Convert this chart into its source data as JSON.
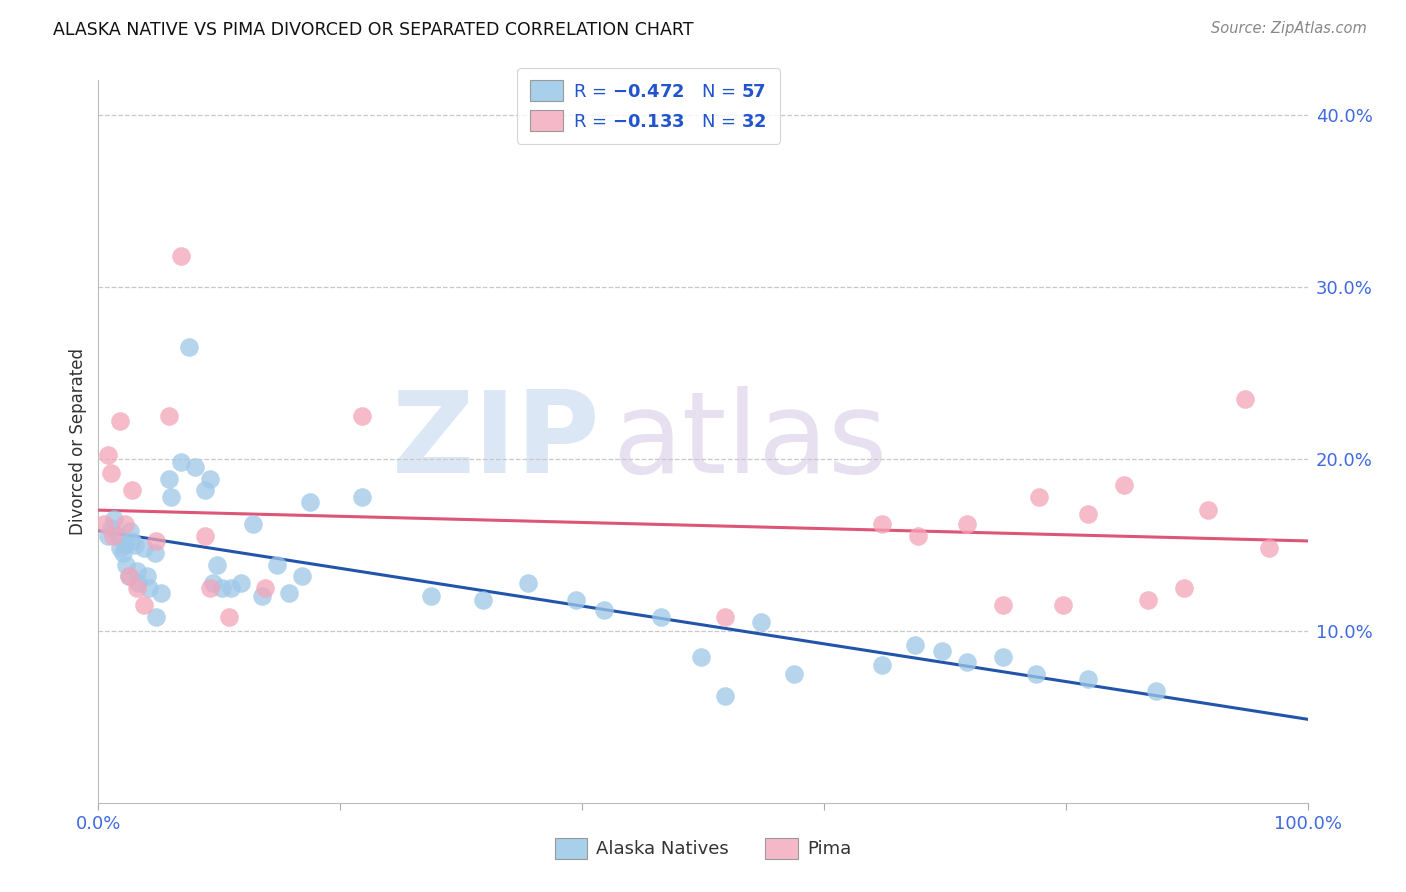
{
  "title": "ALASKA NATIVE VS PIMA DIVORCED OR SEPARATED CORRELATION CHART",
  "source": "Source: ZipAtlas.com",
  "ylabel": "Divorced or Separated",
  "xlim": [
    0.0,
    1.0
  ],
  "ylim": [
    0.0,
    0.42
  ],
  "legend_color1": "#a8d0eb",
  "legend_color2": "#f5b8c8",
  "line_color1": "#2255aa",
  "line_color2": "#dd5577",
  "dot_color1": "#9ec8e8",
  "dot_color2": "#f4a4b8",
  "background_color": "#ffffff",
  "grid_color": "#c8c8c8",
  "tick_color": "#4169E1",
  "alaska_x": [
    0.008,
    0.01,
    0.013,
    0.016,
    0.018,
    0.02,
    0.022,
    0.023,
    0.025,
    0.026,
    0.028,
    0.03,
    0.032,
    0.033,
    0.038,
    0.04,
    0.042,
    0.047,
    0.048,
    0.052,
    0.058,
    0.06,
    0.068,
    0.075,
    0.08,
    0.088,
    0.092,
    0.095,
    0.098,
    0.102,
    0.11,
    0.118,
    0.128,
    0.135,
    0.148,
    0.158,
    0.168,
    0.175,
    0.218,
    0.275,
    0.318,
    0.355,
    0.395,
    0.418,
    0.465,
    0.498,
    0.518,
    0.548,
    0.575,
    0.648,
    0.675,
    0.698,
    0.718,
    0.748,
    0.775,
    0.818,
    0.875
  ],
  "alaska_y": [
    0.155,
    0.16,
    0.165,
    0.155,
    0.148,
    0.145,
    0.15,
    0.138,
    0.132,
    0.158,
    0.152,
    0.15,
    0.135,
    0.128,
    0.148,
    0.132,
    0.125,
    0.145,
    0.108,
    0.122,
    0.188,
    0.178,
    0.198,
    0.265,
    0.195,
    0.182,
    0.188,
    0.128,
    0.138,
    0.125,
    0.125,
    0.128,
    0.162,
    0.12,
    0.138,
    0.122,
    0.132,
    0.175,
    0.178,
    0.12,
    0.118,
    0.128,
    0.118,
    0.112,
    0.108,
    0.085,
    0.062,
    0.105,
    0.075,
    0.08,
    0.092,
    0.088,
    0.082,
    0.085,
    0.075,
    0.072,
    0.065
  ],
  "pima_x": [
    0.005,
    0.008,
    0.01,
    0.012,
    0.018,
    0.022,
    0.025,
    0.028,
    0.032,
    0.038,
    0.048,
    0.058,
    0.068,
    0.088,
    0.092,
    0.108,
    0.138,
    0.218,
    0.518,
    0.648,
    0.678,
    0.718,
    0.748,
    0.778,
    0.798,
    0.818,
    0.848,
    0.868,
    0.898,
    0.918,
    0.948,
    0.968
  ],
  "pima_y": [
    0.162,
    0.202,
    0.192,
    0.155,
    0.222,
    0.162,
    0.132,
    0.182,
    0.125,
    0.115,
    0.152,
    0.225,
    0.318,
    0.155,
    0.125,
    0.108,
    0.125,
    0.225,
    0.108,
    0.162,
    0.155,
    0.162,
    0.115,
    0.178,
    0.115,
    0.168,
    0.185,
    0.118,
    0.125,
    0.17,
    0.235,
    0.148
  ]
}
